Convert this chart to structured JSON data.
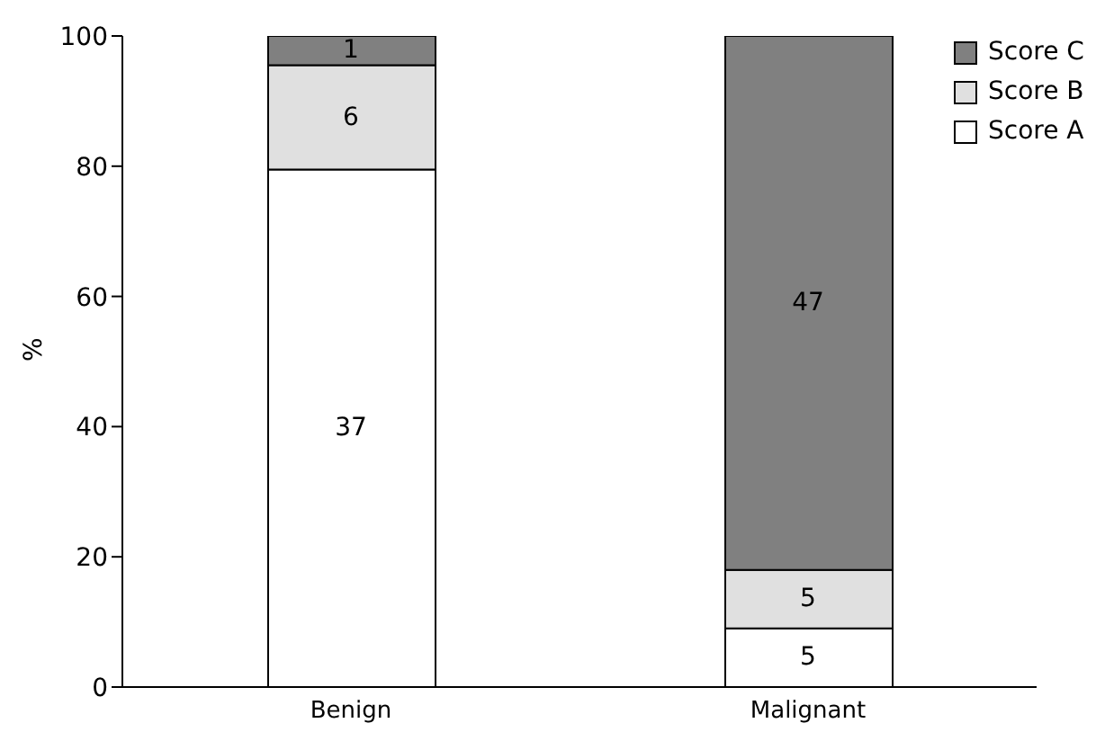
{
  "chart_data": {
    "type": "bar",
    "stacked": true,
    "ylabel": "%",
    "categories": [
      "Benign",
      "Malignant"
    ],
    "series": [
      {
        "name": "Score A",
        "color": "#ffffff",
        "values": [
          79.5,
          9
        ]
      },
      {
        "name": "Score B",
        "color": "#e0e0e0",
        "values": [
          16,
          9
        ]
      },
      {
        "name": "Score C",
        "color": "#808080",
        "values": [
          4.5,
          82
        ]
      }
    ],
    "annotations": [
      "37",
      "6",
      "1",
      "5",
      "5",
      "47"
    ],
    "ylim": [
      0,
      100
    ],
    "yticks": [
      0,
      20,
      40,
      60,
      80,
      100
    ],
    "grid": false,
    "legend": "top right"
  }
}
